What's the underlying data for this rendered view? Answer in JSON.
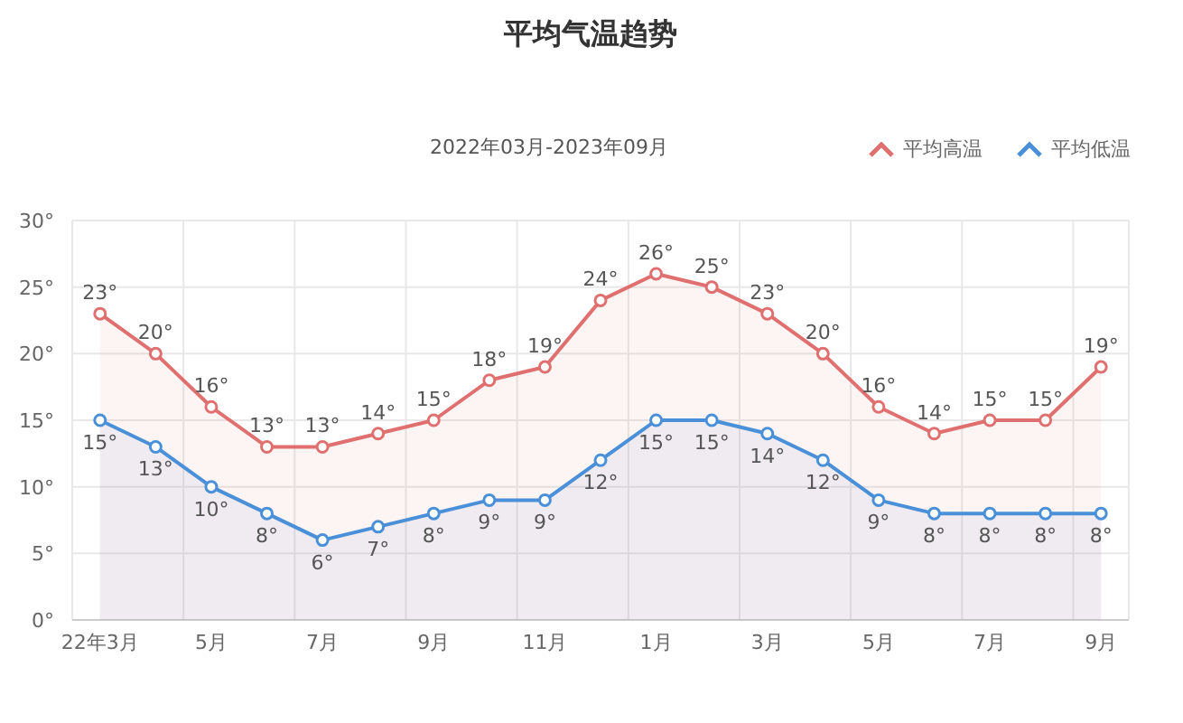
{
  "chart_data": {
    "type": "area",
    "title": "平均气温趋势",
    "subtitle": "2022年03月-2023年09月",
    "categories": [
      "22年3月",
      null,
      "5月",
      null,
      "7月",
      null,
      "9月",
      null,
      "11月",
      null,
      "1月",
      null,
      "3月",
      null,
      "5月",
      null,
      "7月",
      null,
      "9月"
    ],
    "series": [
      {
        "name": "平均高温",
        "color": "#e07070",
        "values": [
          23,
          20,
          16,
          13,
          13,
          14,
          15,
          18,
          19,
          24,
          26,
          25,
          23,
          20,
          16,
          14,
          15,
          15,
          19
        ],
        "value_labels": [
          "23°",
          "20°",
          "16°",
          "13°",
          "13°",
          "14°",
          "15°",
          "18°",
          "19°",
          "24°",
          "26°",
          "25°",
          "23°",
          "20°",
          "16°",
          "14°",
          "15°",
          "15°",
          "19°"
        ]
      },
      {
        "name": "平均低温",
        "color": "#4a90d9",
        "values": [
          15,
          13,
          10,
          8,
          6,
          7,
          8,
          9,
          9,
          12,
          15,
          15,
          14,
          12,
          9,
          8,
          8,
          8,
          8
        ],
        "value_labels": [
          "15°",
          "13°",
          "10°",
          "8°",
          "6°",
          "7°",
          "8°",
          "9°",
          "9°",
          "12°",
          "15°",
          "15°",
          "14°",
          "12°",
          "9°",
          "8°",
          "8°",
          "8°",
          "8°"
        ]
      }
    ],
    "ylim": [
      0,
      30
    ],
    "yticks": [
      {
        "value": 0,
        "label": "0°"
      },
      {
        "value": 5,
        "label": "5°"
      },
      {
        "value": 10,
        "label": "10°"
      },
      {
        "value": 15,
        "label": "15°"
      },
      {
        "value": 20,
        "label": "20°"
      },
      {
        "value": 25,
        "label": "25°"
      },
      {
        "value": 30,
        "label": "30°"
      }
    ],
    "grid": true,
    "legend": "top right",
    "marker": "circle"
  }
}
